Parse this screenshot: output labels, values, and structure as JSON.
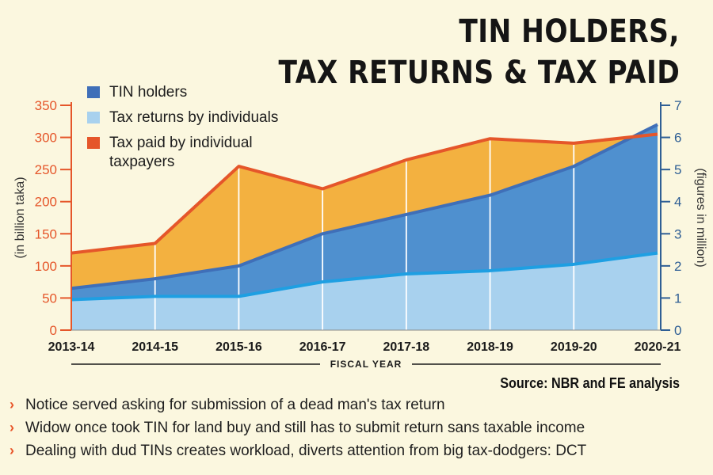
{
  "title": {
    "line1": "TIN HOLDERS,",
    "line2": "TAX RETURNS & TAX PAID"
  },
  "colors": {
    "background": "#fbf7df",
    "tax_paid_fill": "#f3b140",
    "tax_paid_line": "#e5562a",
    "tin_fill": "#4f90cf",
    "tin_line": "#3f6fb8",
    "returns_fill": "#a8d1ee",
    "returns_line": "#1e9fe2",
    "left_axis": "#e5562a",
    "right_axis": "#2f5f95"
  },
  "legend": [
    {
      "label": "TIN holders",
      "color": "#3f6fb8"
    },
    {
      "label": "Tax returns by individuals",
      "color": "#a8d1ee"
    },
    {
      "label": "Tax paid by individual taxpayers",
      "line1": "Tax paid by individual",
      "line2": "taxpayers",
      "color": "#e5562a"
    }
  ],
  "source": "Source: NBR and FE analysis",
  "bullets": [
    "Notice served asking for submission of a dead man's tax return",
    "Widow once took TIN for land buy and still has to submit return sans taxable income",
    "Dealing with dud TINs creates workload, diverts attention from big tax-dodgers: DCT"
  ],
  "chart_data": {
    "type": "area",
    "x": [
      "2013-14",
      "2014-15",
      "2015-16",
      "2016-17",
      "2017-18",
      "2018-19",
      "2019-20",
      "2020-21"
    ],
    "xlabel": "FISCAL YEAR",
    "ylabel_left": "(in billion taka)",
    "ylabel_right": "(figures in million)",
    "ylim_left": [
      0,
      350
    ],
    "yticks_left": [
      0,
      50,
      100,
      150,
      200,
      250,
      300,
      350
    ],
    "ylim_right": [
      0,
      7
    ],
    "yticks_right": [
      0,
      1,
      2,
      3,
      4,
      5,
      6,
      7
    ],
    "series": [
      {
        "name": "Tax paid by individual taxpayers",
        "axis": "left",
        "unit": "billion taka",
        "values": [
          120,
          135,
          255,
          220,
          265,
          298,
          291,
          305
        ]
      },
      {
        "name": "TIN holders",
        "axis": "right",
        "unit": "million",
        "values": [
          1.3,
          1.6,
          2.0,
          3.0,
          3.6,
          4.2,
          5.1,
          6.4
        ]
      },
      {
        "name": "Tax returns by individuals",
        "axis": "right",
        "unit": "million",
        "values": [
          0.95,
          1.05,
          1.05,
          1.5,
          1.75,
          1.85,
          2.05,
          2.4
        ]
      }
    ],
    "grid": false,
    "legend_position": "top-left"
  }
}
